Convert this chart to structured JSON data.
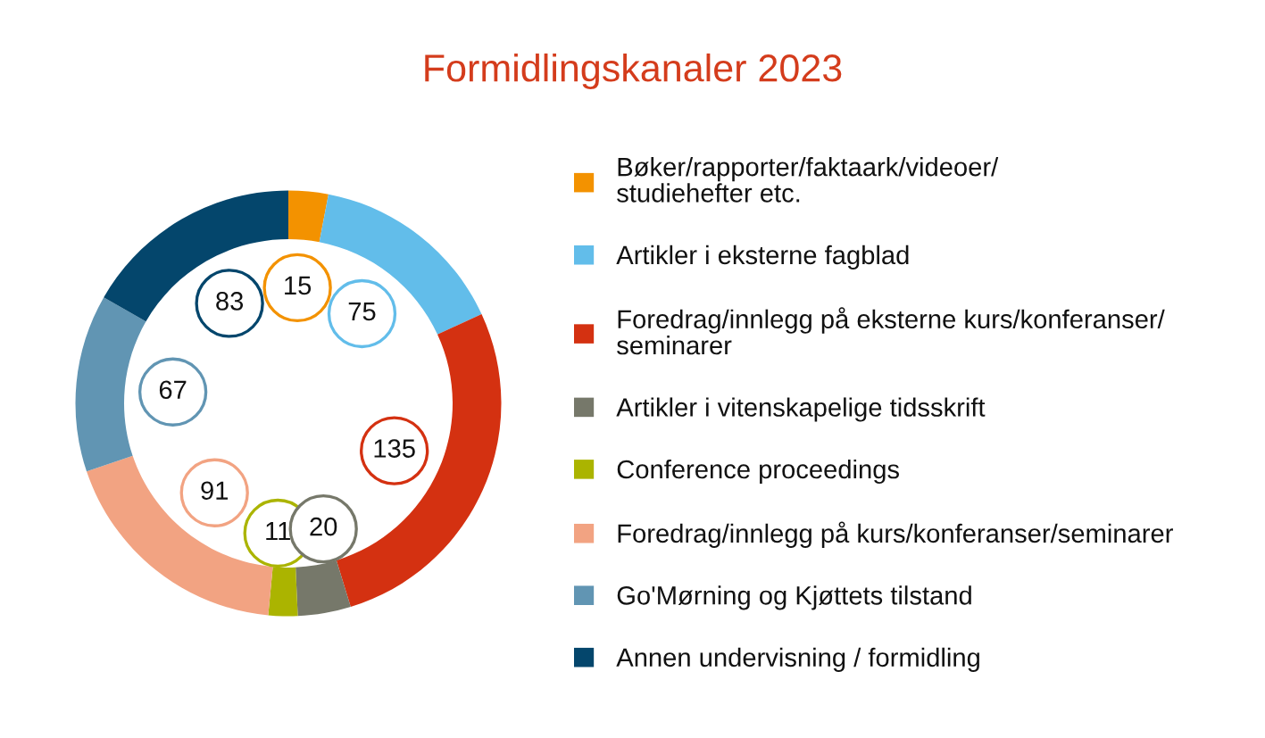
{
  "chart_data": {
    "type": "donut",
    "title": "Formidlingskanaler 2023",
    "categories": [
      "Bøker/rapporter/faktaark/videoer/\nstudiehefter etc.",
      "Artikler i eksterne fagblad",
      "Foredrag/innlegg på eksterne kurs/konferanser/\nseminarer",
      "Artikler i vitenskapelige tidsskrift",
      "Conference proceedings",
      "Foredrag/innlegg på kurs/konferanser/seminarer",
      "Go'Mørning og Kjøttets tilstand",
      "Annen undervisning / formidling"
    ],
    "values": [
      15,
      75,
      135,
      20,
      11,
      91,
      67,
      83
    ],
    "colors": [
      "#f39200",
      "#62bdea",
      "#d43111",
      "#76786a",
      "#abb400",
      "#f2a382",
      "#6195b3",
      "#04466c"
    ],
    "data_labels": true,
    "legend": "right"
  }
}
